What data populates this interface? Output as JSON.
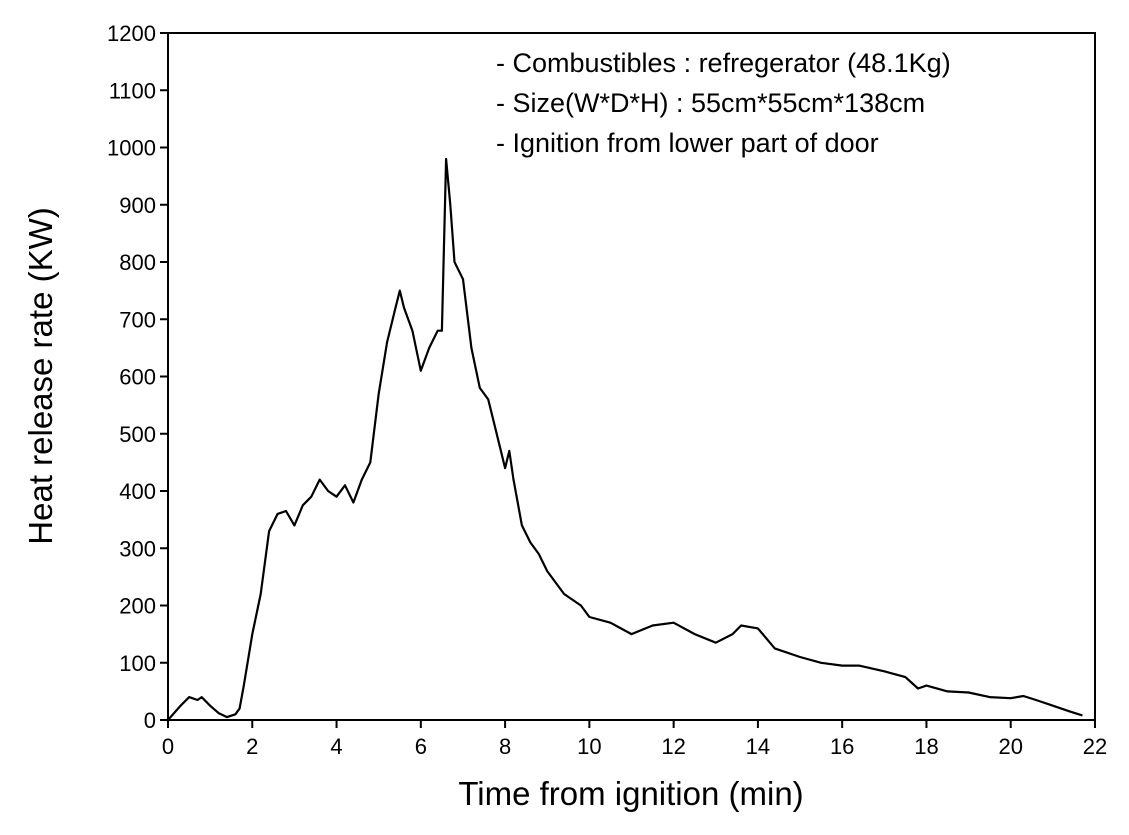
{
  "chart_data": {
    "type": "line",
    "xlabel": "Time from ignition (min)",
    "ylabel": "Heat release rate (KW)",
    "annotations": [
      "- Combustibles : refregerator (48.1Kg)",
      "- Size(W*D*H) : 55cm*55cm*138cm",
      "- Ignition from lower part of door"
    ],
    "color": "#000000",
    "x": [
      0,
      0.3,
      0.5,
      0.7,
      0.8,
      1.0,
      1.2,
      1.4,
      1.6,
      1.7,
      1.8,
      2.0,
      2.2,
      2.4,
      2.6,
      2.8,
      3.0,
      3.2,
      3.4,
      3.6,
      3.8,
      4.0,
      4.2,
      4.4,
      4.6,
      4.8,
      5.0,
      5.2,
      5.4,
      5.5,
      5.6,
      5.8,
      6.0,
      6.2,
      6.4,
      6.5,
      6.6,
      6.7,
      6.8,
      7.0,
      7.2,
      7.4,
      7.6,
      7.8,
      8.0,
      8.1,
      8.2,
      8.4,
      8.6,
      8.8,
      9.0,
      9.4,
      9.8,
      10.0,
      10.5,
      11.0,
      11.5,
      12.0,
      12.5,
      13.0,
      13.4,
      13.6,
      14.0,
      14.4,
      15.0,
      15.5,
      16.0,
      16.4,
      17.0,
      17.5,
      17.8,
      18.0,
      18.5,
      19.0,
      19.5,
      20.0,
      20.3,
      20.6,
      21.0,
      21.4,
      21.7
    ],
    "values": [
      0,
      25,
      40,
      35,
      40,
      25,
      12,
      5,
      10,
      20,
      60,
      150,
      220,
      330,
      360,
      365,
      340,
      375,
      390,
      420,
      400,
      390,
      410,
      380,
      420,
      450,
      570,
      660,
      720,
      750,
      720,
      680,
      610,
      650,
      680,
      680,
      980,
      900,
      800,
      770,
      650,
      580,
      560,
      500,
      440,
      470,
      420,
      340,
      310,
      290,
      260,
      220,
      200,
      180,
      170,
      150,
      165,
      170,
      150,
      135,
      150,
      165,
      160,
      125,
      110,
      100,
      95,
      95,
      85,
      75,
      55,
      60,
      50,
      48,
      40,
      38,
      42,
      35,
      25,
      15,
      8
    ],
    "xlim": [
      0,
      22
    ],
    "ylim": [
      0,
      1200
    ],
    "xticks": [
      0,
      2,
      4,
      6,
      8,
      10,
      12,
      14,
      16,
      18,
      20,
      22
    ],
    "yticks": [
      0,
      100,
      200,
      300,
      400,
      500,
      600,
      700,
      800,
      900,
      1000,
      1100,
      1200
    ]
  }
}
